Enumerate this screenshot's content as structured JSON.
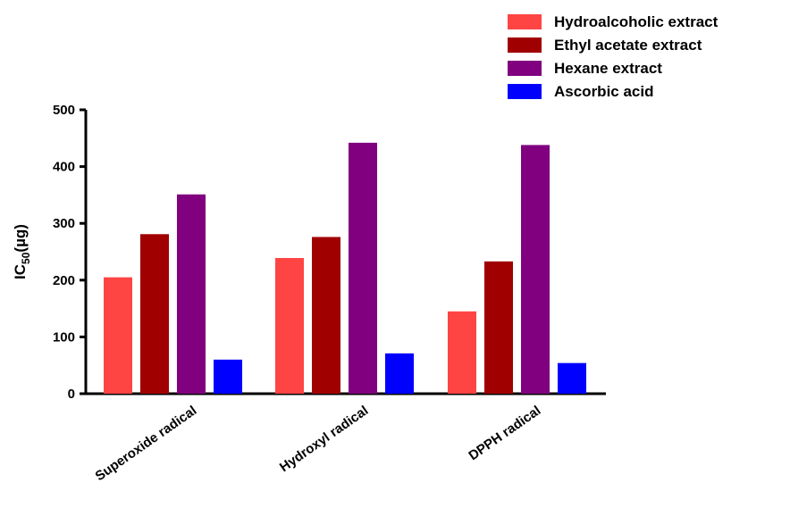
{
  "chart_data": {
    "type": "bar",
    "categories": [
      "Superoxide radical",
      "Hydroxyl radical",
      "DPPH radical"
    ],
    "series": [
      {
        "name": "Hydroalcoholic extract",
        "color": "#ff4444",
        "values": [
          205,
          239,
          145
        ]
      },
      {
        "name": "Ethyl acetate extract",
        "color": "#a00000",
        "values": [
          281,
          276,
          233
        ]
      },
      {
        "name": "Hexane extract",
        "color": "#800080",
        "values": [
          351,
          442,
          438
        ]
      },
      {
        "name": "Ascorbic acid",
        "color": "#0000ff",
        "values": [
          60,
          71,
          54
        ]
      }
    ],
    "ylabel_main": "IC",
    "ylabel_sub": "50",
    "ylabel_unit": "(µg)",
    "ylim": [
      0,
      500
    ],
    "yticks": [
      "0",
      "100",
      "200",
      "300",
      "400",
      "500"
    ],
    "legend_position": "top-right",
    "grid": false
  }
}
